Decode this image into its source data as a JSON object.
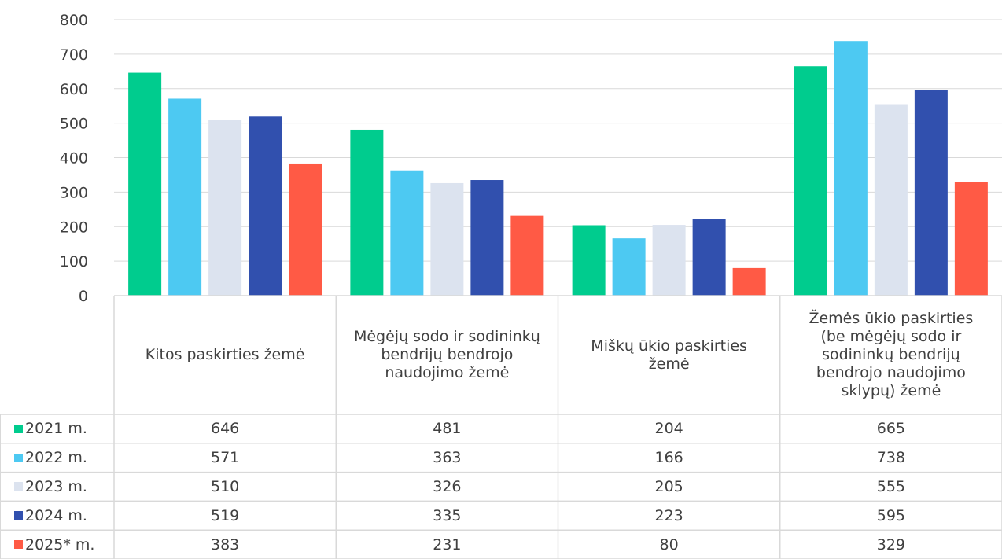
{
  "chart_data": {
    "type": "bar",
    "categories": [
      "Kitos paskirties žemė",
      "Mėgėjų sodo ir sodininkų\nbendrijų bendrojo\nnaudojimo žemė",
      "Miškų ūkio paskirties\nžemė",
      "Žemės ūkio paskirties\n(be mėgėjų sodo ir\nsodininkų bendrijų\nbendrojo naudojimo\nsklypų) žemė"
    ],
    "series": [
      {
        "name": "2021 m.",
        "color": "#00cc8e",
        "values": [
          646,
          481,
          204,
          665
        ]
      },
      {
        "name": "2022 m.",
        "color": "#4dc9f2",
        "values": [
          571,
          363,
          166,
          738
        ]
      },
      {
        "name": "2023 m.",
        "color": "#dce3ef",
        "values": [
          510,
          326,
          205,
          555
        ]
      },
      {
        "name": "2024 m.",
        "color": "#3150ae",
        "values": [
          519,
          335,
          223,
          595
        ]
      },
      {
        "name": "2025* m.",
        "color": "#ff5a45",
        "values": [
          383,
          231,
          80,
          329
        ]
      }
    ],
    "yticks": [
      "0",
      "100",
      "200",
      "300",
      "400",
      "500",
      "600",
      "700",
      "800"
    ],
    "ylim": [
      0,
      800
    ],
    "grid": true,
    "legend": "data-table-left"
  }
}
